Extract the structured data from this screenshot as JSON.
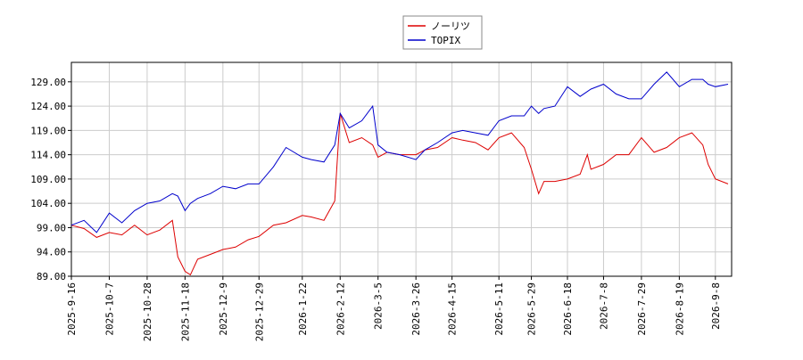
{
  "chart_data": {
    "type": "line",
    "x": [
      "2025-9-16",
      "2025-9-23",
      "2025-9-30",
      "2025-10-7",
      "2025-10-14",
      "2025-10-21",
      "2025-10-28",
      "2025-11-4",
      "2025-11-11",
      "2025-11-14",
      "2025-11-18",
      "2025-11-21",
      "2025-11-25",
      "2025-12-2",
      "2025-12-9",
      "2025-12-16",
      "2025-12-23",
      "2025-12-29",
      "2026-1-6",
      "2026-1-13",
      "2026-1-22",
      "2026-1-27",
      "2026-2-3",
      "2026-2-9",
      "2026-2-12",
      "2026-2-17",
      "2026-2-24",
      "2026-3-2",
      "2026-3-5",
      "2026-3-10",
      "2026-3-17",
      "2026-3-26",
      "2026-3-31",
      "2026-4-7",
      "2026-4-15",
      "2026-4-21",
      "2026-4-28",
      "2026-5-5",
      "2026-5-11",
      "2026-5-18",
      "2026-5-25",
      "2026-5-29",
      "2026-6-2",
      "2026-6-5",
      "2026-6-11",
      "2026-6-18",
      "2026-6-25",
      "2026-6-29",
      "2026-7-1",
      "2026-7-8",
      "2026-7-15",
      "2026-7-22",
      "2026-7-29",
      "2026-8-5",
      "2026-8-12",
      "2026-8-19",
      "2026-8-26",
      "2026-9-1",
      "2026-9-4",
      "2026-9-8",
      "2026-9-15"
    ],
    "series": [
      {
        "name": "ノーリツ",
        "color": "#dd0000",
        "values": [
          99.5,
          98.8,
          97,
          98,
          97.5,
          99.5,
          97.5,
          98.5,
          100.5,
          93,
          90,
          89.3,
          92.5,
          93.5,
          94.5,
          95,
          96.5,
          97.2,
          99.5,
          100,
          101.5,
          101.2,
          100.5,
          104.5,
          122.5,
          116.5,
          117.5,
          116,
          113.5,
          114.5,
          114,
          114,
          115,
          115.5,
          117.5,
          117,
          116.5,
          115,
          117.5,
          118.5,
          115.5,
          111,
          106,
          108.5,
          108.5,
          109,
          110,
          114,
          111,
          112,
          114,
          114,
          117.5,
          114.5,
          115.5,
          117.5,
          118.5,
          116,
          112,
          109,
          108
        ]
      },
      {
        "name": "TOPIX",
        "color": "#0000cc",
        "values": [
          99.5,
          100.5,
          98,
          102,
          100,
          102.5,
          104,
          104.5,
          106,
          105.5,
          102.5,
          104,
          105,
          106,
          107.5,
          107,
          108,
          108,
          111.5,
          115.5,
          113.5,
          113,
          112.5,
          116,
          122.5,
          119.5,
          121,
          124,
          116,
          114.5,
          114,
          113,
          115,
          116.5,
          118.5,
          119,
          118.5,
          118,
          121,
          122,
          122,
          124,
          122.5,
          123.5,
          124,
          128,
          126,
          127,
          127.5,
          128.5,
          126.5,
          125.5,
          125.5,
          128.5,
          131,
          128,
          129.5,
          129.5,
          128.5,
          128,
          128.5
        ]
      }
    ],
    "xlim": [
      "2025-9-16",
      "2026-9-17"
    ],
    "xticks": [
      "2025-9-16",
      "2025-10-7",
      "2025-10-28",
      "2025-11-18",
      "2025-12-9",
      "2025-12-29",
      "2026-1-22",
      "2026-2-12",
      "2026-3-5",
      "2026-3-26",
      "2026-4-15",
      "2026-5-11",
      "2026-5-29",
      "2026-6-18",
      "2026-7-8",
      "2026-7-29",
      "2026-8-19",
      "2026-9-8"
    ],
    "ylim": [
      89,
      133
    ],
    "yticks": [
      {
        "value": 89,
        "label": "89.00"
      },
      {
        "value": 94,
        "label": "94.00"
      },
      {
        "value": 99,
        "label": "99.00"
      },
      {
        "value": 104,
        "label": "104.00"
      },
      {
        "value": 109,
        "label": "109.00"
      },
      {
        "value": 114,
        "label": "114.00"
      },
      {
        "value": 119,
        "label": "119.00"
      },
      {
        "value": 124,
        "label": "124.00"
      },
      {
        "value": 129,
        "label": "129.00"
      }
    ],
    "grid": true,
    "legend": "top"
  }
}
